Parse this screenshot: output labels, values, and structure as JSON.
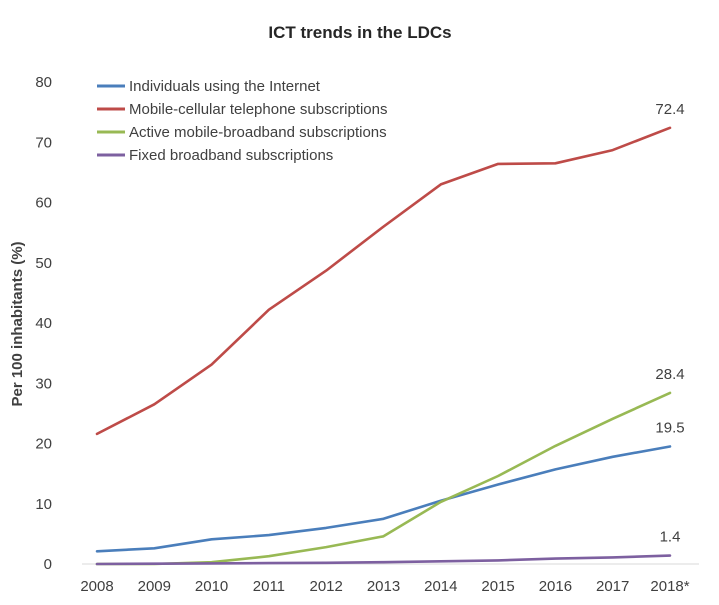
{
  "chart_data": {
    "type": "line",
    "title": "ICT trends in the LDCs",
    "xlabel": "",
    "ylabel": "Per 100 inhabitants (%)",
    "ylim": [
      0,
      80
    ],
    "yticks": [
      0,
      10,
      20,
      30,
      40,
      50,
      60,
      70,
      80
    ],
    "categories": [
      "2008",
      "2009",
      "2010",
      "2011",
      "2012",
      "2013",
      "2014",
      "2015",
      "2016",
      "2017",
      "2018*"
    ],
    "grid": false,
    "legend_position": "top-left",
    "series": [
      {
        "name": "Individuals using the Internet",
        "color": "#4A7EBB",
        "values": [
          2.1,
          2.6,
          4.1,
          4.8,
          6.0,
          7.5,
          10.5,
          13.2,
          15.7,
          17.8,
          19.5
        ],
        "end_label": "19.5"
      },
      {
        "name": "Mobile-cellular telephone subscriptions",
        "color": "#BE4B48",
        "values": [
          21.6,
          26.5,
          33.1,
          42.2,
          48.7,
          56.0,
          63.0,
          66.4,
          66.5,
          68.7,
          72.4
        ],
        "end_label": "72.4"
      },
      {
        "name": "Active mobile-broadband subscriptions",
        "color": "#98B954",
        "values": [
          0.0,
          0.0,
          0.3,
          1.3,
          2.8,
          4.6,
          10.3,
          14.6,
          19.6,
          24.1,
          28.4
        ],
        "end_label": "28.4"
      },
      {
        "name": "Fixed broadband subscriptions",
        "color": "#7D60A0",
        "values": [
          0.0,
          0.05,
          0.1,
          0.15,
          0.2,
          0.3,
          0.45,
          0.6,
          0.9,
          1.1,
          1.4
        ],
        "end_label": "1.4"
      }
    ]
  }
}
